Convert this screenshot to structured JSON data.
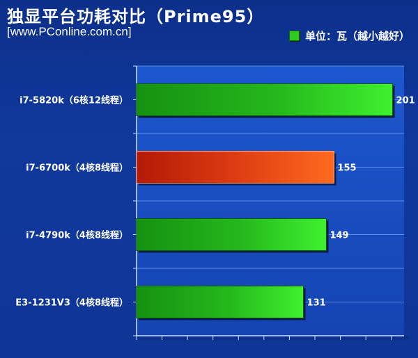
{
  "header": {
    "title": "独显平台功耗对比（Prime95）",
    "source": "[www.PConline.com.cn]",
    "legend_label": "单位：瓦（越小越好）"
  },
  "colors": {
    "background": "#0f3596",
    "plot_background": "#1a50c6",
    "green_bar": "#2ecc1f",
    "highlight_bar": "#ff5a1a"
  },
  "chart_data": {
    "type": "bar",
    "orientation": "horizontal",
    "title": "独显平台功耗对比（Prime95）",
    "categories": [
      "i7-5820k（6核12线程）",
      "i7-6700k（4核8线程）",
      "i7-4790k（4核8线程）",
      "E3-1231V3（4核8线程）"
    ],
    "values": [
      201,
      155,
      149,
      131
    ],
    "highlight": [
      "i7-6700k（4核8线程）"
    ],
    "unit": "单位：瓦（越小越好）",
    "xlim": [
      0,
      210
    ],
    "grid": true,
    "legend_position": "top-right"
  }
}
